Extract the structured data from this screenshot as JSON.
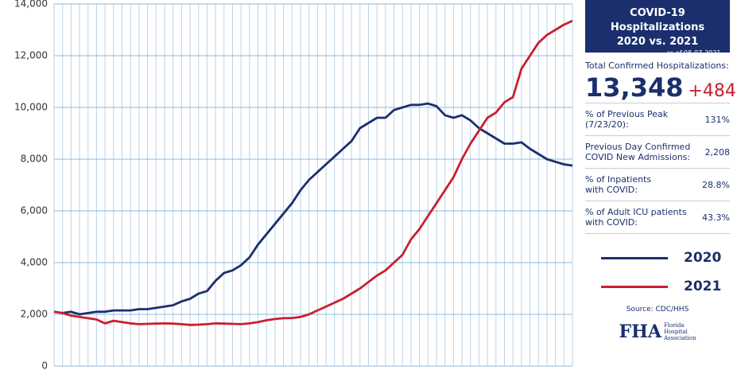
{
  "chart_data": {
    "type": "line",
    "categories": [
      null,
      null,
      null,
      null,
      null,
      null,
      null,
      null,
      null,
      null,
      null,
      null,
      null,
      null,
      null,
      null,
      null,
      null,
      null,
      null,
      null,
      null,
      null,
      null,
      null,
      null,
      null,
      null,
      null,
      null,
      null,
      null,
      null,
      null,
      null,
      null,
      null,
      null,
      null,
      null,
      null,
      null,
      null,
      null,
      null,
      null,
      null,
      null,
      null,
      null,
      null,
      null,
      null,
      null,
      null,
      null,
      null,
      null,
      null,
      null,
      null,
      null
    ],
    "series": [
      {
        "name": "2020",
        "color": "#1b2f6e",
        "values": [
          2100,
          2050,
          2100,
          2000,
          2050,
          2100,
          2100,
          2150,
          2150,
          2150,
          2200,
          2200,
          2250,
          2300,
          2350,
          2500,
          2600,
          2800,
          2900,
          3300,
          3600,
          3700,
          3900,
          4200,
          4700,
          5100,
          5500,
          5900,
          6300,
          6800,
          7200,
          7500,
          7800,
          8100,
          8400,
          8700,
          9200,
          9400,
          9600,
          9600,
          9900,
          10000,
          10100,
          10100,
          10150,
          10050,
          9700,
          9600,
          9700,
          9500,
          9200,
          9000,
          8800,
          8600,
          8600,
          8650,
          8400,
          8200,
          8000,
          7900,
          7800,
          7750
        ]
      },
      {
        "name": "2021",
        "color": "#c8202f",
        "values": [
          2100,
          2050,
          1950,
          1900,
          1850,
          1800,
          1650,
          1750,
          1700,
          1650,
          1620,
          1630,
          1640,
          1650,
          1640,
          1620,
          1590,
          1600,
          1620,
          1650,
          1640,
          1630,
          1620,
          1650,
          1700,
          1770,
          1820,
          1850,
          1860,
          1900,
          2000,
          2150,
          2300,
          2450,
          2600,
          2800,
          3000,
          3250,
          3500,
          3700,
          4000,
          4300,
          4900,
          5300,
          5800,
          6300,
          6800,
          7300,
          8000,
          8600,
          9100,
          9600,
          9800,
          10200,
          10400,
          11500,
          12000,
          12500,
          12800,
          13000,
          13200,
          13348
        ]
      }
    ],
    "ylim": [
      0,
      14000
    ],
    "yticks": [
      0,
      {
        "value": 2000,
        "label": "2,000"
      },
      {
        "value": 4000,
        "label": "4,000"
      },
      {
        "value": 6000,
        "label": "6,000"
      },
      {
        "value": 8000,
        "label": "8,000"
      },
      {
        "value": 10000,
        "label": "10,000"
      },
      {
        "value": 12000,
        "label": "12,000"
      },
      {
        "value": 14000,
        "label": "14,000"
      }
    ],
    "grid": true
  },
  "panel": {
    "title": [
      "COVID-19 Hospitalizations",
      "2020 vs. 2021"
    ],
    "date": "as of 08-07-2021",
    "total_label": "Total Confirmed Hospitalizations:",
    "total": "13,348",
    "change": "+484",
    "rows": [
      {
        "label": [
          "% of Previous Peak",
          "(7/23/20):"
        ],
        "value": "131%"
      },
      {
        "label": [
          "Previous Day Confirmed",
          "COVID New Admissions:"
        ],
        "value": "2,208"
      },
      {
        "label": [
          "% of Inpatients",
          "with COVID:"
        ],
        "value": "28.8%"
      },
      {
        "label": [
          "% of Adult ICU patients",
          "with COVID:"
        ],
        "value": "43.3%"
      }
    ],
    "source": "Source: CDC/HHS",
    "logo": {
      "mark": "FHA",
      "name": [
        "Florida",
        "Hospital",
        "Association"
      ]
    }
  }
}
